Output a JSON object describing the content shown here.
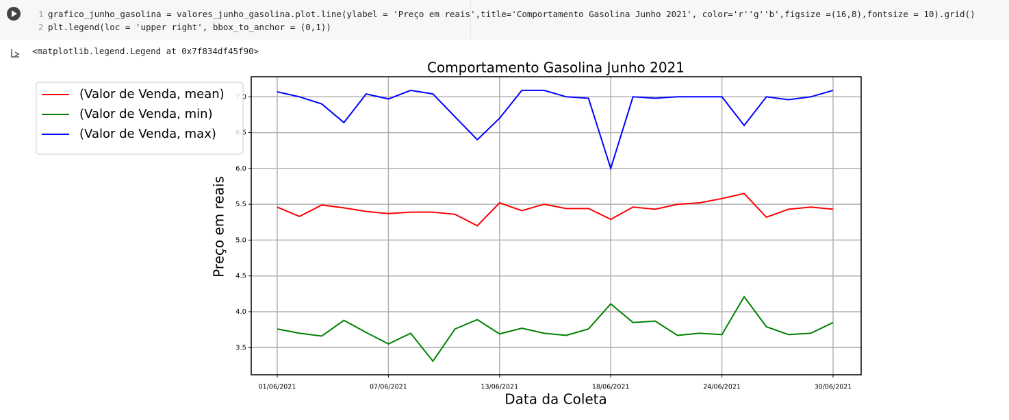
{
  "code": {
    "line_numbers": [
      "1",
      "2"
    ],
    "lines": [
      "grafico_junho_gasolina = valores_junho_gasolina.plot.line(ylabel = 'Preço em reais',title='Comportamento Gasolina Junho 2021', color='r''g''b',figsize =(16,8),fontsize = 10).grid()",
      "plt.legend(loc = 'upper right', bbox_to_anchor = (0,1))"
    ]
  },
  "output": "<matplotlib.legend.Legend at 0x7f834df45f90>",
  "chart_data": {
    "type": "line",
    "title": "Comportamento Gasolina Junho 2021",
    "xlabel": "Data da Coleta",
    "ylabel": "Preço em reais",
    "categories": [
      "01/06/2021",
      null,
      null,
      null,
      null,
      "07/06/2021",
      null,
      null,
      null,
      null,
      "13/06/2021",
      null,
      null,
      null,
      null,
      "18/06/2021",
      null,
      null,
      null,
      null,
      "24/06/2021",
      null,
      null,
      null,
      null,
      "30/06/2021"
    ],
    "series": [
      {
        "name": "(Valor de Venda, mean)",
        "color": "#ff0000",
        "values": [
          5.46,
          5.33,
          5.49,
          5.45,
          5.4,
          5.37,
          5.39,
          5.39,
          5.36,
          5.2,
          5.52,
          5.41,
          5.5,
          5.44,
          5.44,
          5.29,
          5.46,
          5.43,
          5.5,
          5.52,
          5.58,
          5.65,
          5.32,
          5.43,
          5.46,
          5.43
        ]
      },
      {
        "name": "(Valor de Venda, min)",
        "color": "#008000",
        "values": [
          3.76,
          3.7,
          3.66,
          3.88,
          3.71,
          3.55,
          3.7,
          3.31,
          3.76,
          3.89,
          3.69,
          3.77,
          3.7,
          3.67,
          3.76,
          4.11,
          3.85,
          3.87,
          3.67,
          3.7,
          3.68,
          4.21,
          3.79,
          3.68,
          3.7,
          3.85
        ]
      },
      {
        "name": "(Valor de Venda, max)",
        "color": "#0000ff",
        "values": [
          7.07,
          7.0,
          6.9,
          6.64,
          7.04,
          6.97,
          7.09,
          7.04,
          6.72,
          6.4,
          6.7,
          7.09,
          7.09,
          7.0,
          6.98,
          6.0,
          7.0,
          6.98,
          7.0,
          7.0,
          7.0,
          6.6,
          7.0,
          6.96,
          7.0,
          7.09
        ]
      }
    ],
    "ylim": [
      3.12,
      7.28
    ],
    "yticks": [
      3.5,
      {
        "value": 4,
        "label": "4.0"
      },
      4.5,
      {
        "value": 5,
        "label": "5.0"
      },
      5.5,
      {
        "value": 6,
        "label": "6.0"
      },
      6.5,
      {
        "value": 7,
        "label": "7.0"
      }
    ],
    "grid": true,
    "legend": "upper left"
  }
}
